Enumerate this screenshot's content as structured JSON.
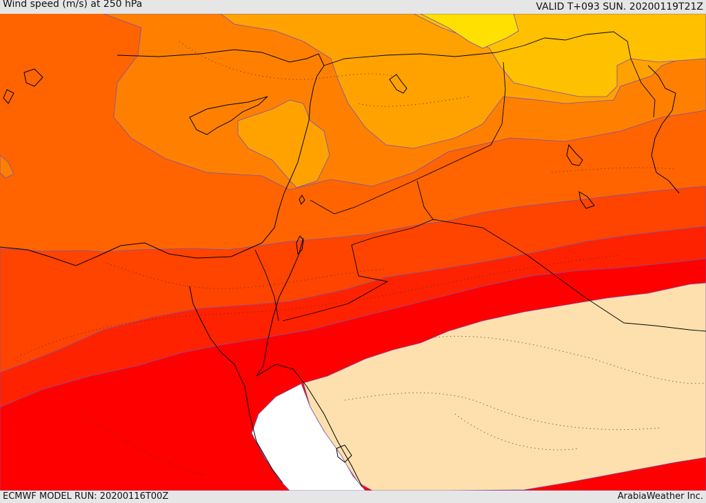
{
  "header": {
    "title": "Wind speed (m/s) at 250 hPa",
    "valid": "VALID T+093 SUN. 20200119T21Z"
  },
  "footer": {
    "model_run": "ECMWF MODEL RUN: 20200116T00Z",
    "credit": "ArabiaWeather Inc."
  },
  "map": {
    "palette": {
      "yellow": "#ffe000",
      "amber": "#ffc000",
      "light_orange": "#ffa200",
      "orange": "#ff8000",
      "dark_orange": "#ff6400",
      "orange_red": "#ff4400",
      "red_orange": "#ff2200",
      "red": "#ff0000",
      "pale": "#fde0ae",
      "white": "#ffffff"
    }
  }
}
